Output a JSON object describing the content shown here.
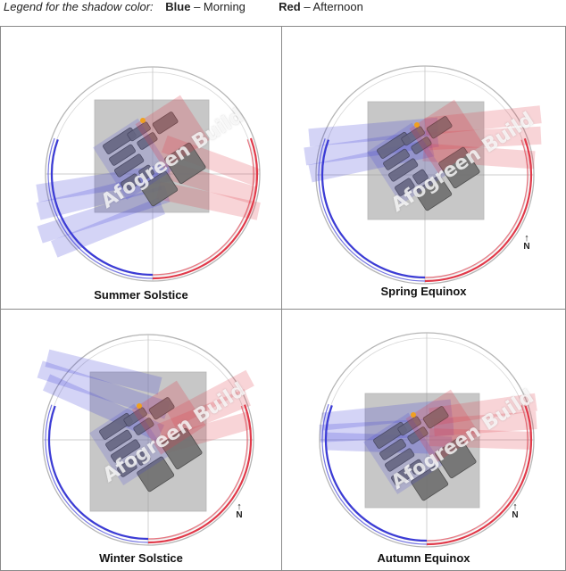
{
  "legend": {
    "intro": "Legend for the shadow color:",
    "blue_label": "Blue",
    "blue_text": "– Morning",
    "red_label": "Red",
    "red_text": "– Afternoon"
  },
  "colors": {
    "morning": "#3b3bd6",
    "afternoon": "#e03a4a",
    "site": "#9a9a9a",
    "building": "#6f6f6f"
  },
  "watermark": "Afogreen Build",
  "north_label": "N",
  "panels": [
    {
      "title": "Summer Solstice",
      "north": false
    },
    {
      "title": "Spring Equinox",
      "north": true
    },
    {
      "title": "Winter Solstice",
      "north": true
    },
    {
      "title": "Autumn Equinox",
      "north": true
    }
  ]
}
